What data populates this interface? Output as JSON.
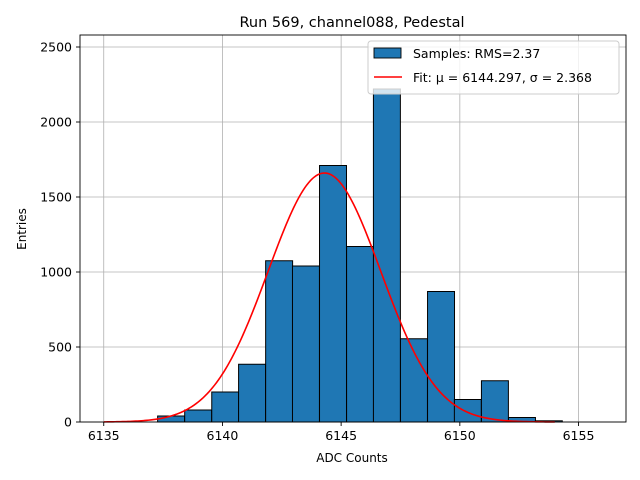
{
  "chart_data": {
    "type": "bar",
    "title": "Run 569, channel088, Pedestal",
    "xlabel": "ADC Counts",
    "ylabel": "Entries",
    "xlim": [
      6134,
      6157
    ],
    "ylim": [
      0,
      2580
    ],
    "xticks": [
      6135,
      6140,
      6145,
      6150,
      6155
    ],
    "yticks": [
      0,
      500,
      1000,
      1500,
      2000,
      2500
    ],
    "grid": true,
    "legend_position": "top-right",
    "bin_width": 1.136,
    "bins": [
      {
        "left": 6137.27,
        "count": 40
      },
      {
        "left": 6138.41,
        "count": 80
      },
      {
        "left": 6139.55,
        "count": 200
      },
      {
        "left": 6140.68,
        "count": 385
      },
      {
        "left": 6141.82,
        "count": 1075
      },
      {
        "left": 6142.95,
        "count": 1040
      },
      {
        "left": 6144.09,
        "count": 1710
      },
      {
        "left": 6145.23,
        "count": 1170
      },
      {
        "left": 6146.36,
        "count": 2220
      },
      {
        "left": 6147.5,
        "count": 555
      },
      {
        "left": 6148.64,
        "count": 870
      },
      {
        "left": 6149.77,
        "count": 150
      },
      {
        "left": 6150.91,
        "count": 275
      },
      {
        "left": 6152.05,
        "count": 30
      },
      {
        "left": 6153.18,
        "count": 8
      }
    ],
    "fit": {
      "mu": 6144.297,
      "sigma": 2.368,
      "peak": 1660,
      "x_start": 6135,
      "x_end": 6154
    },
    "legend": [
      {
        "label": "Samples: RMS=2.37",
        "kind": "patch",
        "color": "#1f77b4"
      },
      {
        "label": "Fit: μ = 6144.297, σ = 2.368",
        "kind": "line",
        "color": "#ff0000"
      }
    ],
    "colors": {
      "bar": "#1f77b4",
      "bar_edge": "#000000",
      "fit": "#ff0000",
      "grid": "#b0b0b0"
    }
  }
}
